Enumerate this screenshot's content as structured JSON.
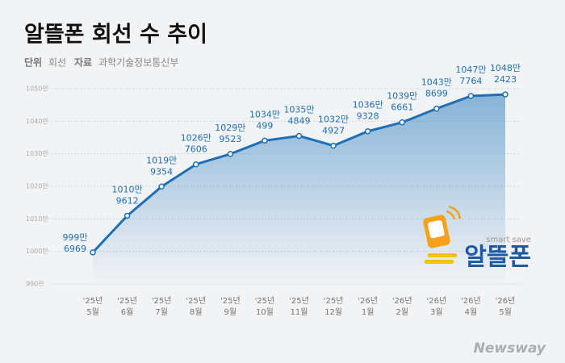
{
  "chart_data": {
    "type": "line",
    "title": "알뜰폰 회선 수 추이",
    "subtitle": {
      "unit_label": "단위",
      "unit": "회선",
      "source_label": "자료",
      "source": "과학기술정보통신부"
    },
    "categories": [
      [
        "'25년",
        "5월"
      ],
      [
        "'25년",
        "6월"
      ],
      [
        "'25년",
        "7월"
      ],
      [
        "'25년",
        "8월"
      ],
      [
        "'25년",
        "9월"
      ],
      [
        "'25년",
        "10월"
      ],
      [
        "'25년",
        "11월"
      ],
      [
        "'25년",
        "12월"
      ],
      [
        "'26년",
        "1월"
      ],
      [
        "'26년",
        "2월"
      ],
      [
        "'26년",
        "3월"
      ],
      [
        "'26년",
        "4월"
      ],
      [
        "'26년",
        "5월"
      ]
    ],
    "values": [
      9996969,
      10109612,
      10199354,
      10267606,
      10299523,
      10340499,
      10354849,
      10324927,
      10369328,
      10396661,
      10438699,
      10477764,
      10482423
    ],
    "value_labels": [
      [
        "999만",
        "6969"
      ],
      [
        "1010만",
        "9612"
      ],
      [
        "1019만",
        "9354"
      ],
      [
        "1026만",
        "7606"
      ],
      [
        "1029만",
        "9523"
      ],
      [
        "1034만",
        "499"
      ],
      [
        "1035만",
        "4849"
      ],
      [
        "1032만",
        "4927"
      ],
      [
        "1036만",
        "9328"
      ],
      [
        "1039만",
        "6661"
      ],
      [
        "1043만",
        "8699"
      ],
      [
        "1047만",
        "7764"
      ],
      [
        "1048만",
        "2423"
      ]
    ],
    "color": "#1f6fb5",
    "ylim": [
      9900000,
      10500000
    ],
    "yticks": [
      {
        "value": 9900000,
        "label": "990만"
      },
      {
        "value": 10000000,
        "label": "1000만"
      },
      {
        "value": 10100000,
        "label": "1010만"
      },
      {
        "value": 10200000,
        "label": "1020만"
      },
      {
        "value": 10300000,
        "label": "1030만"
      },
      {
        "value": 10400000,
        "label": "1040만"
      },
      {
        "value": 10500000,
        "label": "1050만"
      }
    ],
    "grid": true
  },
  "logo": {
    "tagline": "smart save",
    "name": "알뜰폰"
  },
  "footer": {
    "brand": "Newsway"
  }
}
